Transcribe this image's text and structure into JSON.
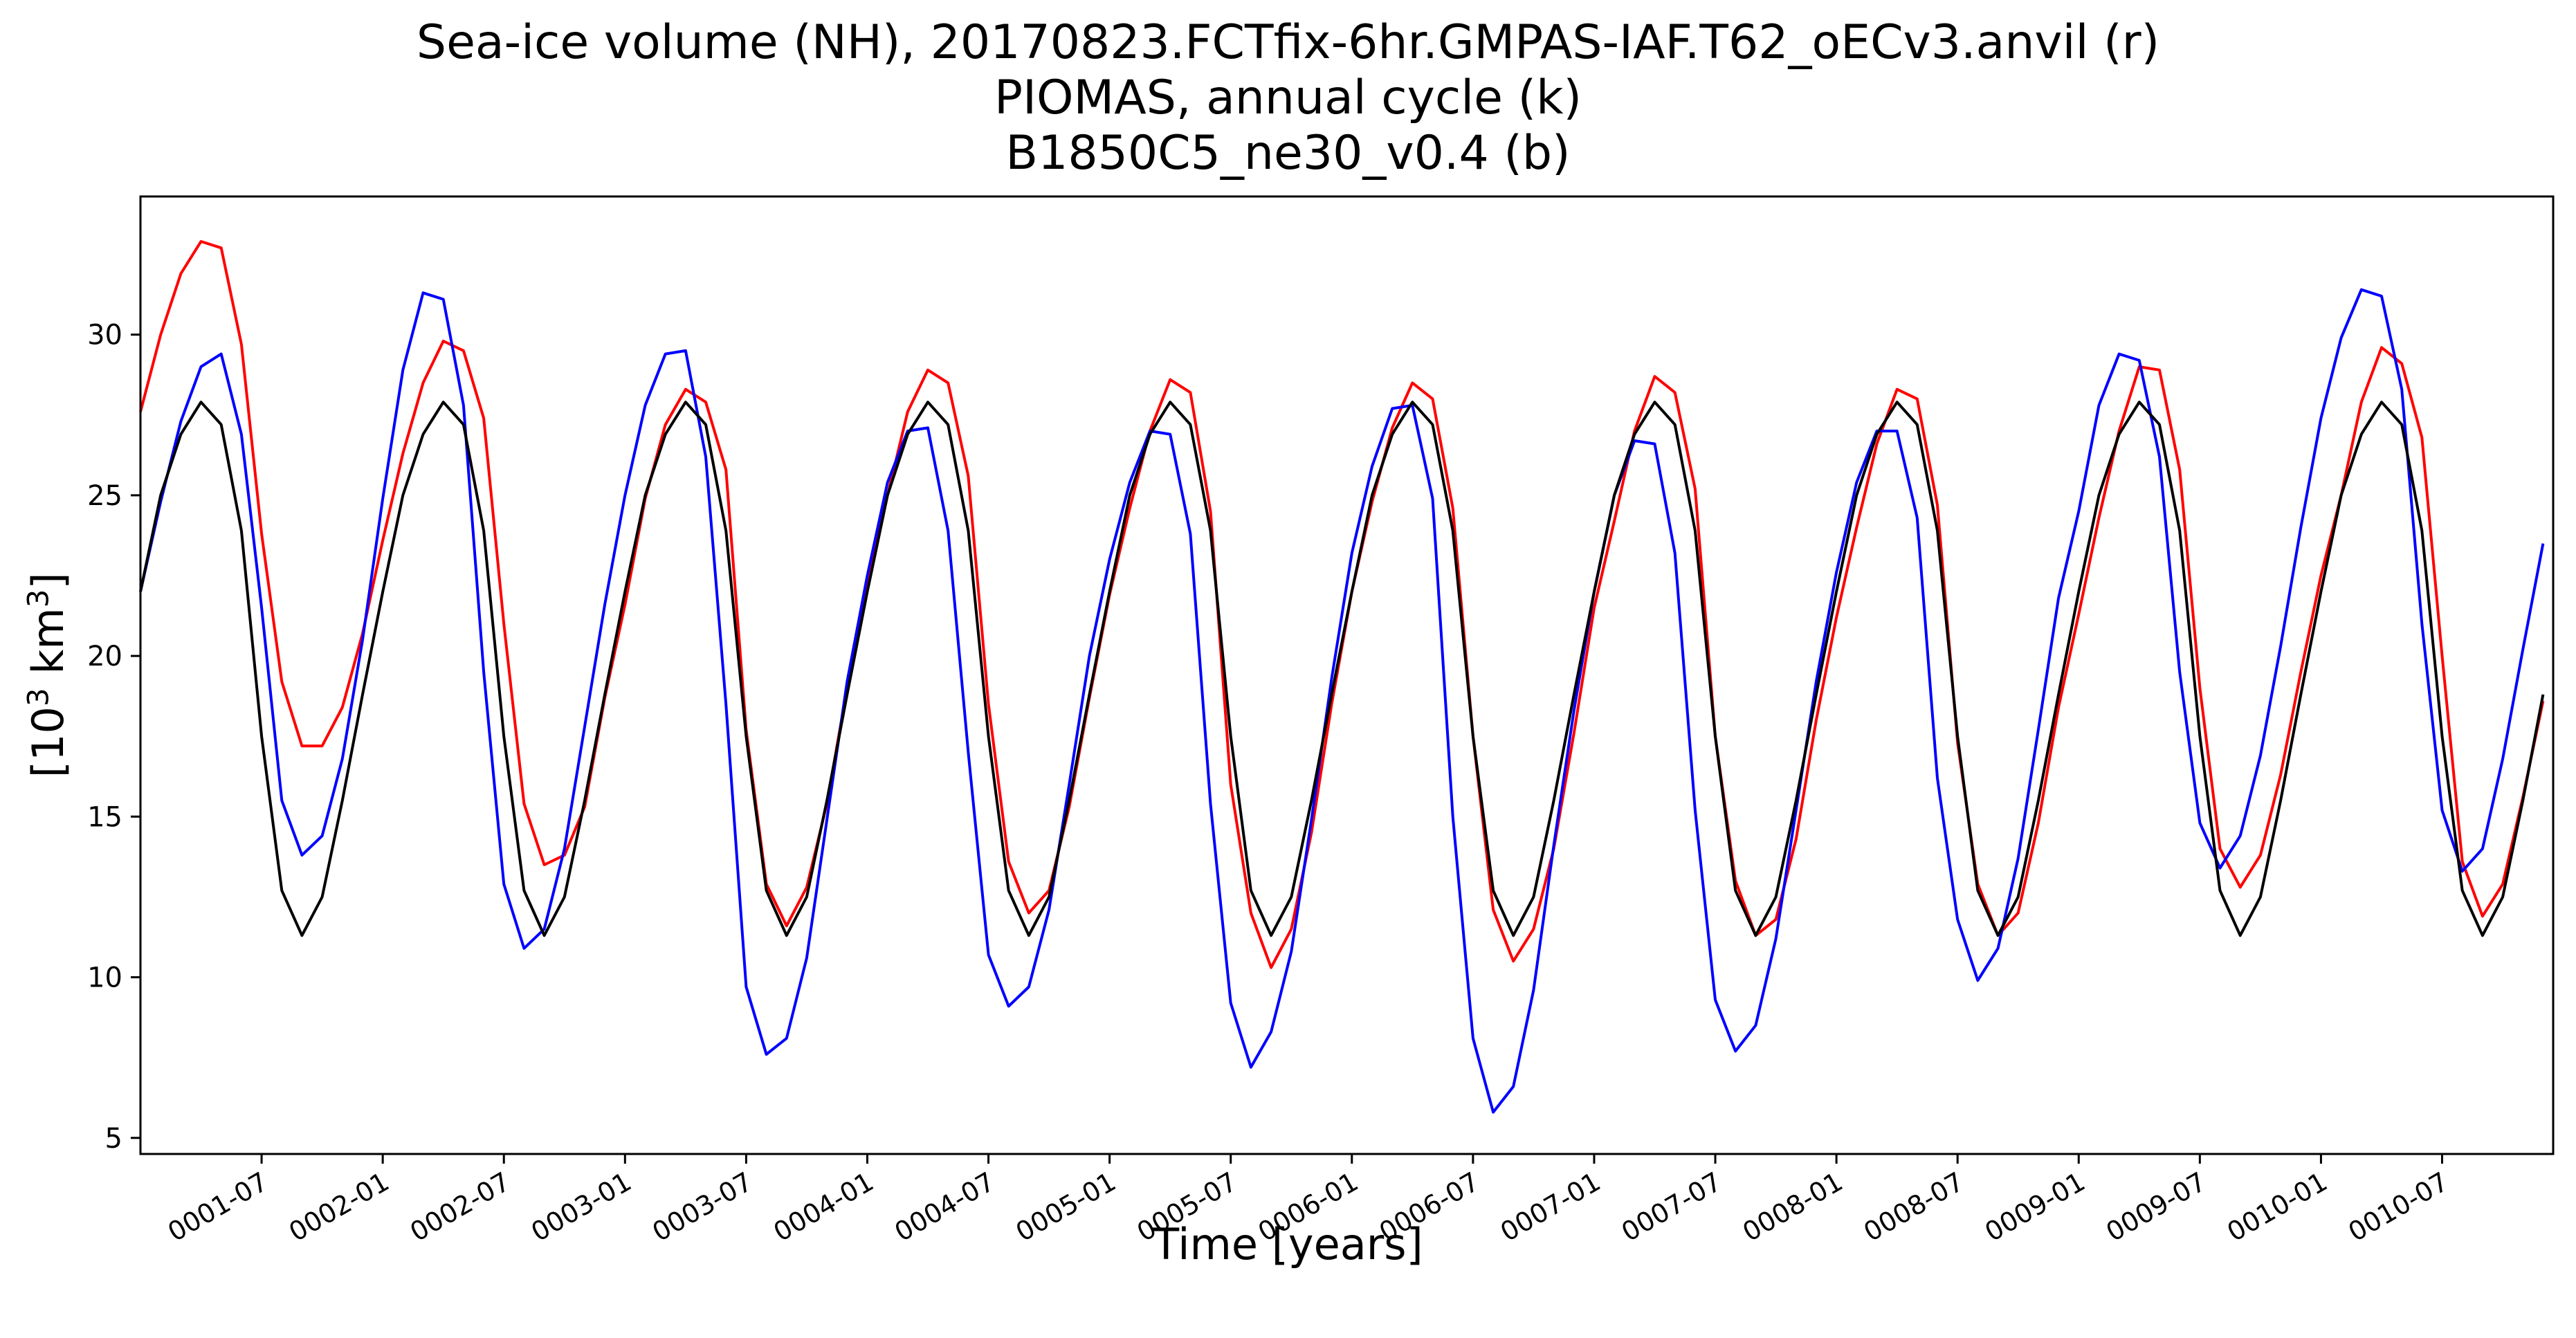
{
  "chart_data": {
    "type": "line",
    "title_lines": [
      "Sea-ice volume (NH), 20170823.FCTfix-6hr.GMPAS-IAF.T62_oECv3.anvil (r)",
      "PIOMAS, annual cycle (k)",
      "B1850C5_ne30_v0.4 (b)"
    ],
    "xlabel": "Time [years]",
    "ylabel_base": "[10",
    "ylabel_sup1": "3",
    "ylabel_mid": " km",
    "ylabel_sup2": "3",
    "ylabel_end": "]",
    "x_start_year": 1,
    "x_start_month": 1,
    "x_step_months": 1,
    "xlim_months": [
      0,
      119.5
    ],
    "ylim": [
      4.5,
      34.3
    ],
    "yticks": [
      5,
      10,
      15,
      20,
      25,
      30
    ],
    "xticks": [
      "0001-07",
      "0002-01",
      "0002-07",
      "0003-01",
      "0003-07",
      "0004-01",
      "0004-07",
      "0005-01",
      "0005-07",
      "0006-01",
      "0006-07",
      "0007-01",
      "0007-07",
      "0008-01",
      "0008-07",
      "0009-01",
      "0009-07",
      "0010-01",
      "0010-07"
    ],
    "series": [
      {
        "color": "#ff0000",
        "values": [
          27.6,
          30.0,
          31.9,
          32.9,
          32.7,
          29.7,
          23.8,
          19.2,
          17.2,
          17.2,
          18.4,
          20.7,
          23.6,
          26.3,
          28.5,
          29.8,
          29.5,
          27.4,
          21.0,
          15.4,
          13.5,
          13.8,
          15.3,
          18.7,
          21.6,
          24.9,
          27.2,
          28.3,
          27.9,
          25.8,
          17.7,
          12.9,
          11.6,
          12.8,
          15.4,
          19.0,
          22.2,
          25.0,
          27.6,
          28.9,
          28.5,
          25.6,
          18.5,
          13.6,
          12.0,
          12.7,
          15.3,
          18.7,
          21.9,
          24.6,
          27.0,
          28.6,
          28.2,
          24.5,
          16.0,
          12.0,
          10.3,
          11.5,
          14.5,
          18.5,
          22.0,
          24.8,
          27.1,
          28.5,
          28.0,
          24.6,
          17.5,
          12.1,
          10.5,
          11.5,
          14.0,
          17.6,
          21.5,
          24.2,
          27.0,
          28.7,
          28.2,
          25.2,
          17.5,
          13.0,
          11.3,
          11.8,
          14.3,
          18.0,
          21.2,
          24.0,
          26.6,
          28.3,
          28.0,
          24.7,
          17.3,
          12.9,
          11.3,
          12.0,
          14.8,
          18.4,
          21.3,
          24.3,
          27.0,
          29.0,
          28.9,
          25.8,
          19.0,
          14.0,
          12.8,
          13.8,
          16.3,
          19.5,
          22.5,
          25.0,
          27.9,
          29.6,
          29.1,
          26.8,
          20.0,
          13.6,
          11.9,
          12.9,
          15.6,
          18.6
        ]
      },
      {
        "color": "#0000ff",
        "values": [
          22.0,
          24.8,
          27.3,
          29.0,
          29.4,
          26.9,
          21.5,
          15.5,
          13.8,
          14.4,
          16.8,
          20.5,
          24.9,
          28.9,
          31.3,
          31.1,
          27.8,
          19.5,
          12.9,
          10.9,
          11.5,
          14.0,
          17.8,
          21.6,
          25.0,
          27.8,
          29.4,
          29.5,
          26.2,
          18.5,
          9.7,
          7.6,
          8.1,
          10.6,
          14.9,
          19.2,
          22.5,
          25.4,
          27.0,
          27.1,
          23.9,
          17.0,
          10.7,
          9.1,
          9.7,
          12.1,
          16.0,
          20.0,
          23.0,
          25.4,
          27.0,
          26.9,
          23.8,
          15.4,
          9.2,
          7.2,
          8.3,
          10.8,
          14.9,
          19.3,
          23.2,
          25.9,
          27.7,
          27.8,
          24.9,
          15.0,
          8.1,
          5.8,
          6.6,
          9.6,
          14.1,
          18.3,
          22.0,
          25.0,
          26.7,
          26.6,
          23.2,
          15.2,
          9.3,
          7.7,
          8.5,
          11.2,
          15.2,
          19.2,
          22.6,
          25.4,
          27.0,
          27.0,
          24.3,
          16.2,
          11.8,
          9.9,
          10.9,
          13.7,
          17.7,
          21.8,
          24.5,
          27.8,
          29.4,
          29.2,
          26.2,
          19.5,
          14.8,
          13.4,
          14.4,
          16.9,
          20.3,
          24.0,
          27.4,
          29.9,
          31.4,
          31.2,
          28.3,
          21.0,
          15.2,
          13.3,
          14.0,
          16.8,
          20.2,
          23.5
        ]
      },
      {
        "color": "#000000",
        "values": [
          22.0,
          25.0,
          26.9,
          27.9,
          27.2,
          23.9,
          17.5,
          12.7,
          11.3,
          12.5,
          15.5,
          18.8,
          22.0,
          25.0,
          26.9,
          27.9,
          27.2,
          23.9,
          17.5,
          12.7,
          11.3,
          12.5,
          15.5,
          18.8,
          22.0,
          25.0,
          26.9,
          27.9,
          27.2,
          23.9,
          17.5,
          12.7,
          11.3,
          12.5,
          15.5,
          18.8,
          22.0,
          25.0,
          26.9,
          27.9,
          27.2,
          23.9,
          17.5,
          12.7,
          11.3,
          12.5,
          15.5,
          18.8,
          22.0,
          25.0,
          26.9,
          27.9,
          27.2,
          23.9,
          17.5,
          12.7,
          11.3,
          12.5,
          15.5,
          18.8,
          22.0,
          25.0,
          26.9,
          27.9,
          27.2,
          23.9,
          17.5,
          12.7,
          11.3,
          12.5,
          15.5,
          18.8,
          22.0,
          25.0,
          26.9,
          27.9,
          27.2,
          23.9,
          17.5,
          12.7,
          11.3,
          12.5,
          15.5,
          18.8,
          22.0,
          25.0,
          26.9,
          27.9,
          27.2,
          23.9,
          17.5,
          12.7,
          11.3,
          12.5,
          15.5,
          18.8,
          22.0,
          25.0,
          26.9,
          27.9,
          27.2,
          23.9,
          17.5,
          12.7,
          11.3,
          12.5,
          15.5,
          18.8,
          22.0,
          25.0,
          26.9,
          27.9,
          27.2,
          23.9,
          17.5,
          12.7,
          11.3,
          12.5,
          15.5,
          18.8
        ]
      }
    ],
    "grid": false,
    "legend": "none"
  }
}
